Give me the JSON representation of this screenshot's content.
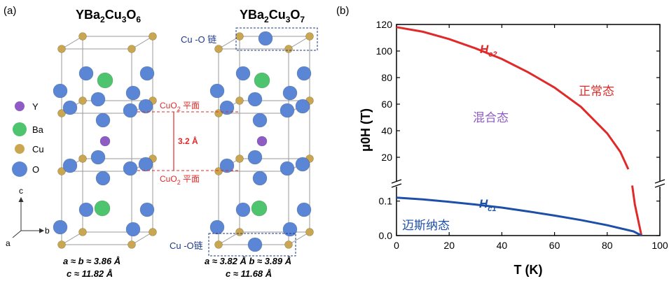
{
  "panel_a": {
    "label": "(a)",
    "left_title": {
      "base": "YBa",
      "s1": "2",
      "mid": "Cu",
      "s2": "3",
      "o": "O",
      "s3": "6"
    },
    "right_title": {
      "base": "YBa",
      "s1": "2",
      "mid": "Cu",
      "s2": "3",
      "o": "O",
      "s3": "7"
    },
    "legend": [
      {
        "label": "Y",
        "color": "#8e5cc4"
      },
      {
        "label": "Ba",
        "color": "#4fc46e"
      },
      {
        "label": "Cu",
        "color": "#c9a64f"
      },
      {
        "label": "O",
        "color": "#5b86d6"
      }
    ],
    "cuo2_plane_label": "CuO",
    "cuo2_sub": "2",
    "plane_suffix": " 平面",
    "distance": "3.2 Å",
    "chain_top": "Cu -O 链",
    "chain_bottom": "Cu -O链",
    "axes": {
      "c": "c",
      "a": "a",
      "b": "b"
    },
    "left_params": {
      "line1": "a ≈ b ≈ 3.86  Å",
      "line2": "c ≈ 11.82  Å"
    },
    "right_params": {
      "line1": "a ≈ 3.82  Å  b ≈ 3.89  Å",
      "line2": "c ≈ 11.68  Å"
    }
  },
  "panel_b": {
    "label": "(b)",
    "chart_data": {
      "type": "line",
      "xlabel": "T (K)",
      "ylabel": "μ0H (T)",
      "xlim": [
        0,
        100
      ],
      "xticks": [
        "0",
        "20",
        "40",
        "60",
        "80",
        "100"
      ],
      "upper_yticks": [
        "20",
        "40",
        "60",
        "80",
        "100",
        "120"
      ],
      "lower_yticks": [
        "0.0",
        "0.1"
      ],
      "upper_ylim": [
        0,
        120
      ],
      "lower_ylim": [
        0,
        0.15
      ],
      "series": [
        {
          "name": "Hc2",
          "color": "#e02a2a",
          "x": [
            0,
            10,
            20,
            30,
            40,
            50,
            60,
            70,
            80,
            85,
            88
          ],
          "y": [
            118,
            114.5,
            109,
            102,
            94,
            84,
            72.5,
            58,
            38,
            24,
            11
          ]
        },
        {
          "name": "Hc1",
          "color": "#1e4fa8",
          "x": [
            0,
            10,
            20,
            30,
            40,
            50,
            60,
            70,
            80,
            90,
            93
          ],
          "y": [
            0.11,
            0.105,
            0.098,
            0.09,
            0.081,
            0.07,
            0.058,
            0.045,
            0.03,
            0.012,
            0.0
          ]
        }
      ],
      "annotations": {
        "hc2_label": "H",
        "hc2_sub": "c2",
        "hc1_label": "H",
        "hc1_sub": "c1",
        "normal_state": "正常态",
        "mixed_state": "混合态",
        "meissner_state": "迈斯纳态"
      }
    }
  }
}
